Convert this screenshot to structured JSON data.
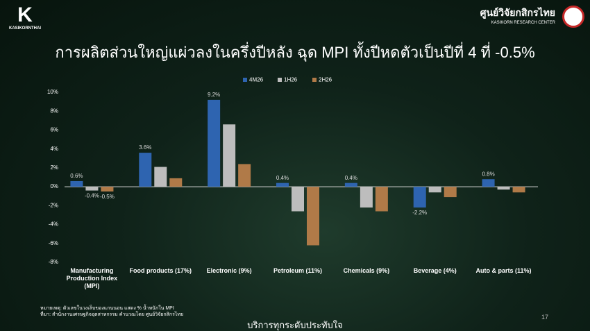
{
  "header": {
    "logo": "KASIKORNTHAI",
    "brand_th": "ศูนย์วิจัยกสิกรไทย",
    "brand_en": "KASIKORN RESEARCH CENTER"
  },
  "chart_data": {
    "type": "bar",
    "title": "การผลิตส่วนใหญ่แผ่วลงในครึ่งปีหลัง ฉุด MPI ทั้งปีหดตัวเป็นปีที่ 4 ที่ -0.5%",
    "categories": [
      "Manufacturing Production Index (MPI)",
      "Food products (17%)",
      "Electronic (9%)",
      "Petroleum (11%)",
      "Chemicals (9%)",
      "Beverage (4%)",
      "Auto & parts (11%)"
    ],
    "series": [
      {
        "name": "4M26",
        "color": "#2e64b0",
        "values": [
          0.6,
          3.6,
          9.2,
          0.4,
          0.4,
          -2.2,
          0.8
        ],
        "value_labels": [
          "0.6%",
          "3.6%",
          "9.2%",
          "0.4%",
          "0.4%",
          "-2.2%",
          "0.8%"
        ]
      },
      {
        "name": "1H26",
        "color": "#bdbdbd",
        "values": [
          -0.4,
          2.1,
          6.6,
          -2.6,
          -2.2,
          -0.6,
          -0.3
        ],
        "value_labels": [
          "-0.4%",
          null,
          null,
          null,
          null,
          null,
          null
        ]
      },
      {
        "name": "2H26",
        "color": "#b07a48",
        "values": [
          -0.5,
          0.9,
          2.4,
          -6.2,
          -2.6,
          -1.1,
          -0.6
        ],
        "value_labels": [
          "-0.5%",
          null,
          null,
          null,
          null,
          null,
          null
        ]
      }
    ],
    "ylim": [
      -8,
      10
    ],
    "yticks": [
      {
        "value": -8,
        "label": "-8%"
      },
      {
        "value": -6,
        "label": "-6%"
      },
      {
        "value": -4,
        "label": "-4%"
      },
      {
        "value": -2,
        "label": "-2%"
      },
      {
        "value": 0,
        "label": "0%"
      },
      {
        "value": 2,
        "label": "2%"
      },
      {
        "value": 4,
        "label": "4%"
      },
      {
        "value": 6,
        "label": "6%"
      },
      {
        "value": 8,
        "label": "8%"
      },
      {
        "value": 10,
        "label": "10%"
      }
    ],
    "grid": false,
    "legend": "top"
  },
  "notes": [
    "หมายเหตุ: ตัวเลขในวงเล็บของแกนนอน แสดง % น้ำหนักใน MPI",
    "ที่มา: สำนักงานเศรษฐกิจอุตสาหกรรม คำนวณโดย ศูนย์วิจัยกสิกรไทย"
  ],
  "footer": {
    "slogan": "บริการทุกระดับประทับใจ",
    "page": "17"
  }
}
